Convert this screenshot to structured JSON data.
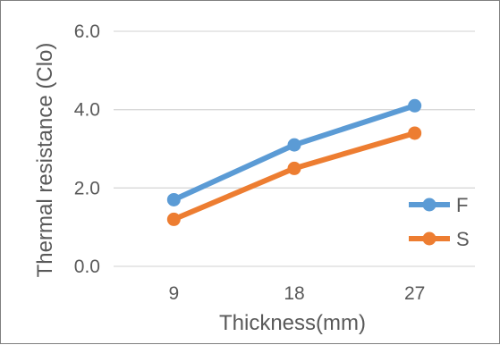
{
  "chart_data": {
    "type": "line",
    "categories": [
      "9",
      "18",
      "27"
    ],
    "series": [
      {
        "name": "F",
        "values": [
          1.7,
          3.1,
          4.1
        ],
        "color": "#5b9bd5"
      },
      {
        "name": "S",
        "values": [
          1.2,
          2.5,
          3.4
        ],
        "color": "#ed7d31"
      }
    ],
    "title": "",
    "xlabel": "Thickness(mm)",
    "ylabel": "Thermal resistance (Clo)",
    "ylim": [
      0,
      6
    ],
    "yticks": [
      0,
      2,
      4,
      6
    ],
    "ytick_labels": [
      "0.0",
      "2.0",
      "4.0",
      "6.0"
    ],
    "grid": "horizontal",
    "legend_position": "right"
  },
  "colors": {
    "gridline": "#d9d9d9",
    "text": "#595959",
    "frame": "#7f7f7f"
  }
}
